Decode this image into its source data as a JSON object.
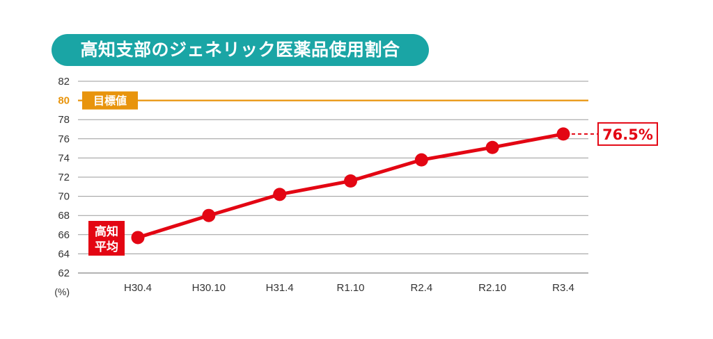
{
  "title": "高知支部のジェネリック医薬品使用割合",
  "colors": {
    "title_bg": "#1aa5a5",
    "target": "#e8940c",
    "series": "#e30613",
    "grid": "#9a9a9a"
  },
  "chart_data": {
    "type": "line",
    "x": [
      "H30.4",
      "H30.10",
      "H31.4",
      "R1.10",
      "R2.4",
      "R2.10",
      "R3.4"
    ],
    "series": [
      {
        "values": [
          65.7,
          68.0,
          70.2,
          71.6,
          73.8,
          75.1,
          76.5
        ]
      }
    ],
    "ylim": [
      62,
      82
    ],
    "yticks": [
      62,
      64,
      66,
      68,
      70,
      72,
      74,
      76,
      78,
      80,
      82
    ],
    "y_unit": "(%)",
    "grid": true,
    "target_line": {
      "value": 80,
      "label": "目標値"
    },
    "annotations": {
      "series_label_line1": "高知",
      "series_label_line2": "平均",
      "last_value_label": "76.5%"
    }
  }
}
